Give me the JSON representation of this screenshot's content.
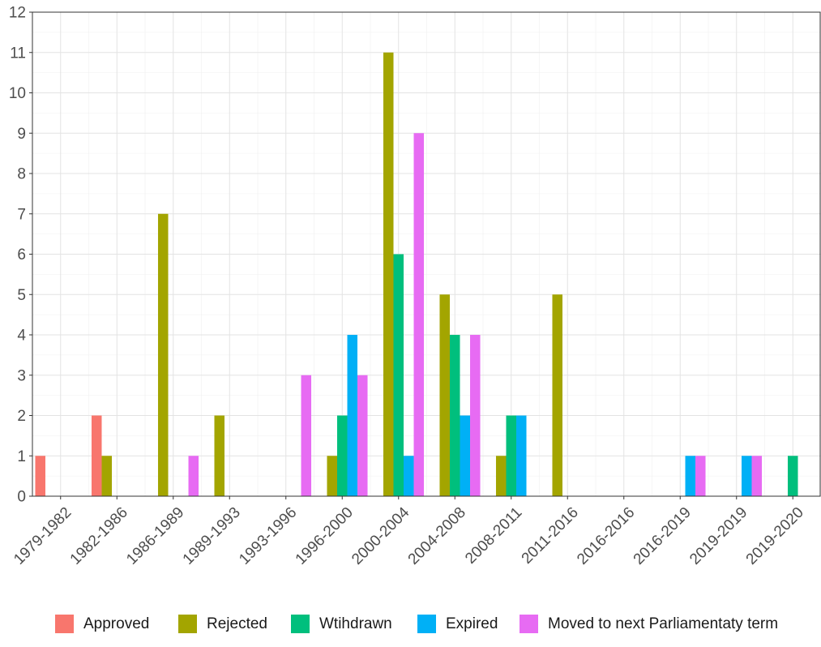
{
  "chart_data": {
    "type": "bar",
    "title": "",
    "xlabel": "",
    "ylabel": "",
    "ylim": [
      0,
      12
    ],
    "yticks": [
      "0",
      "1",
      "2",
      "3",
      "4",
      "5",
      "6",
      "7",
      "8",
      "9",
      "10",
      "11",
      "12"
    ],
    "grid": true,
    "legend_position": "bottom",
    "categories": [
      "1979-1982",
      "1982-1986",
      "1986-1989",
      "1989-1993",
      "1993-1996",
      "1996-2000",
      "2000-2004",
      "2004-2008",
      "2008-2011",
      "2011-2016",
      "2016-2016",
      "2016-2019",
      "2019-2019",
      "2019-2020"
    ],
    "series": [
      {
        "name": "Approved",
        "color": "#F8766D",
        "values": [
          1,
          2,
          0,
          0,
          0,
          0,
          0,
          0,
          0,
          0,
          0,
          0,
          0,
          0
        ]
      },
      {
        "name": "Rejected",
        "color": "#A3A500",
        "values": [
          0,
          1,
          7,
          2,
          0,
          1,
          11,
          5,
          1,
          5,
          0,
          0,
          0,
          0
        ]
      },
      {
        "name": "Wtihdrawn",
        "color": "#00BF7D",
        "values": [
          0,
          0,
          0,
          0,
          0,
          2,
          6,
          4,
          2,
          0,
          0,
          0,
          0,
          1
        ]
      },
      {
        "name": "Expired",
        "color": "#00B0F6",
        "values": [
          0,
          0,
          0,
          0,
          0,
          4,
          1,
          2,
          2,
          0,
          0,
          1,
          1,
          0
        ]
      },
      {
        "name": "Moved to next Parliamentaty term",
        "color": "#E76BF3",
        "values": [
          0,
          0,
          1,
          0,
          3,
          3,
          9,
          4,
          0,
          0,
          0,
          1,
          1,
          0
        ]
      }
    ]
  }
}
